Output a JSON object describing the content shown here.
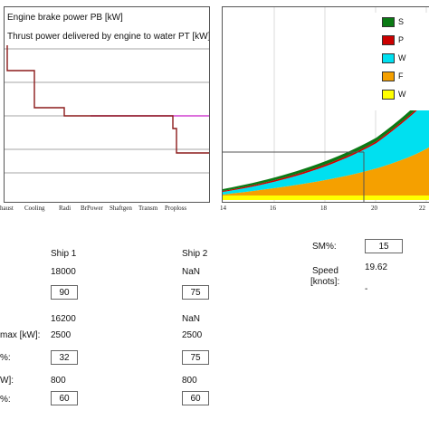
{
  "left_chart": {
    "legend": [
      "Engine brake power PB [kW]",
      "Thrust power delivered by engine to water PT [kW]"
    ],
    "categories": [
      "haust",
      "Cooling",
      "Radi",
      "BrPower",
      "Shaftgen",
      "Transm",
      "Proploss"
    ]
  },
  "right_chart": {
    "x_ticks": [
      "14",
      "16",
      "18",
      "20",
      "22"
    ],
    "legend": [
      {
        "label": "S",
        "color": "#0a7a14"
      },
      {
        "label": "P",
        "color": "#cc0000"
      },
      {
        "label": "W",
        "color": "#00e0f0"
      },
      {
        "label": "F",
        "color": "#f5a000"
      },
      {
        "label": "W",
        "color": "#ffff00"
      }
    ]
  },
  "form": {
    "ship1_header": "Ship 1",
    "ship2_header": "Ship 2",
    "sm_label": "SM%:",
    "sm_value": "15",
    "speed_label_1": "Speed",
    "speed_label_2": "[knots]:",
    "speed_value": "19.62",
    "dash": "-",
    "rows": [
      {
        "label": "",
        "ship1": "18000",
        "ship2": "NaN"
      },
      {
        "label": "",
        "ship1": "90",
        "ship2": "75"
      },
      {
        "label": "",
        "ship1": "16200",
        "ship2": "NaN"
      },
      {
        "label": "max [kW]:",
        "ship1": "2500",
        "ship2": "2500"
      },
      {
        "label": "%:",
        "ship1": "32",
        "ship2": "75"
      },
      {
        "label": "W]:",
        "ship1": "800",
        "ship2": "800"
      },
      {
        "label": "%:",
        "ship1": "60",
        "ship2": "60"
      }
    ]
  }
}
